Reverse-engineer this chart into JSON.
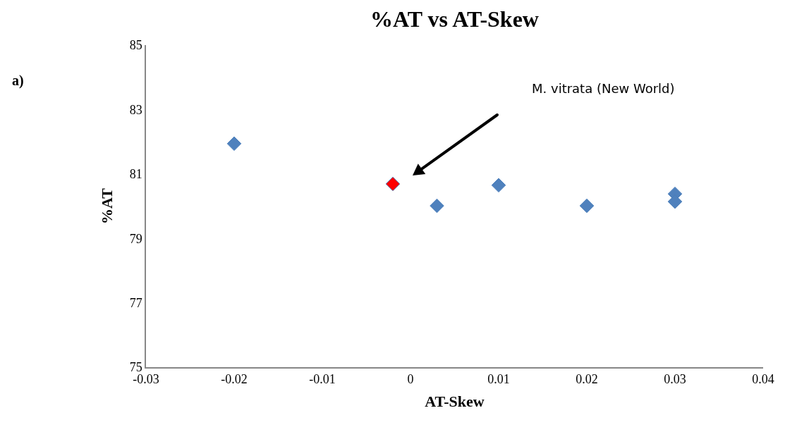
{
  "chart_data": {
    "type": "scatter",
    "title": "%AT vs AT-Skew",
    "xlabel": "AT-Skew",
    "ylabel": "%AT",
    "x": [
      -0.02,
      -0.002,
      0.003,
      0.01,
      0.02,
      0.03,
      0.03
    ],
    "values": [
      81.94,
      80.69,
      80.01,
      80.65,
      80.01,
      80.38,
      80.14
    ],
    "colors": [
      "#4f81bd",
      "#ff0000",
      "#4f81bd",
      "#4f81bd",
      "#4f81bd",
      "#4f81bd",
      "#4f81bd"
    ],
    "marker": "diamond",
    "grid": false,
    "legend": false,
    "xlim": [
      -0.03,
      0.04
    ],
    "xticks": [
      -0.03,
      -0.02,
      -0.01,
      0,
      0.01,
      0.02,
      0.03,
      0.04
    ],
    "ylim": [
      75,
      85
    ],
    "yticks": [
      75,
      77,
      79,
      81,
      83,
      85
    ],
    "annotations": [
      "a)",
      "M. vitrata (New World)"
    ]
  }
}
